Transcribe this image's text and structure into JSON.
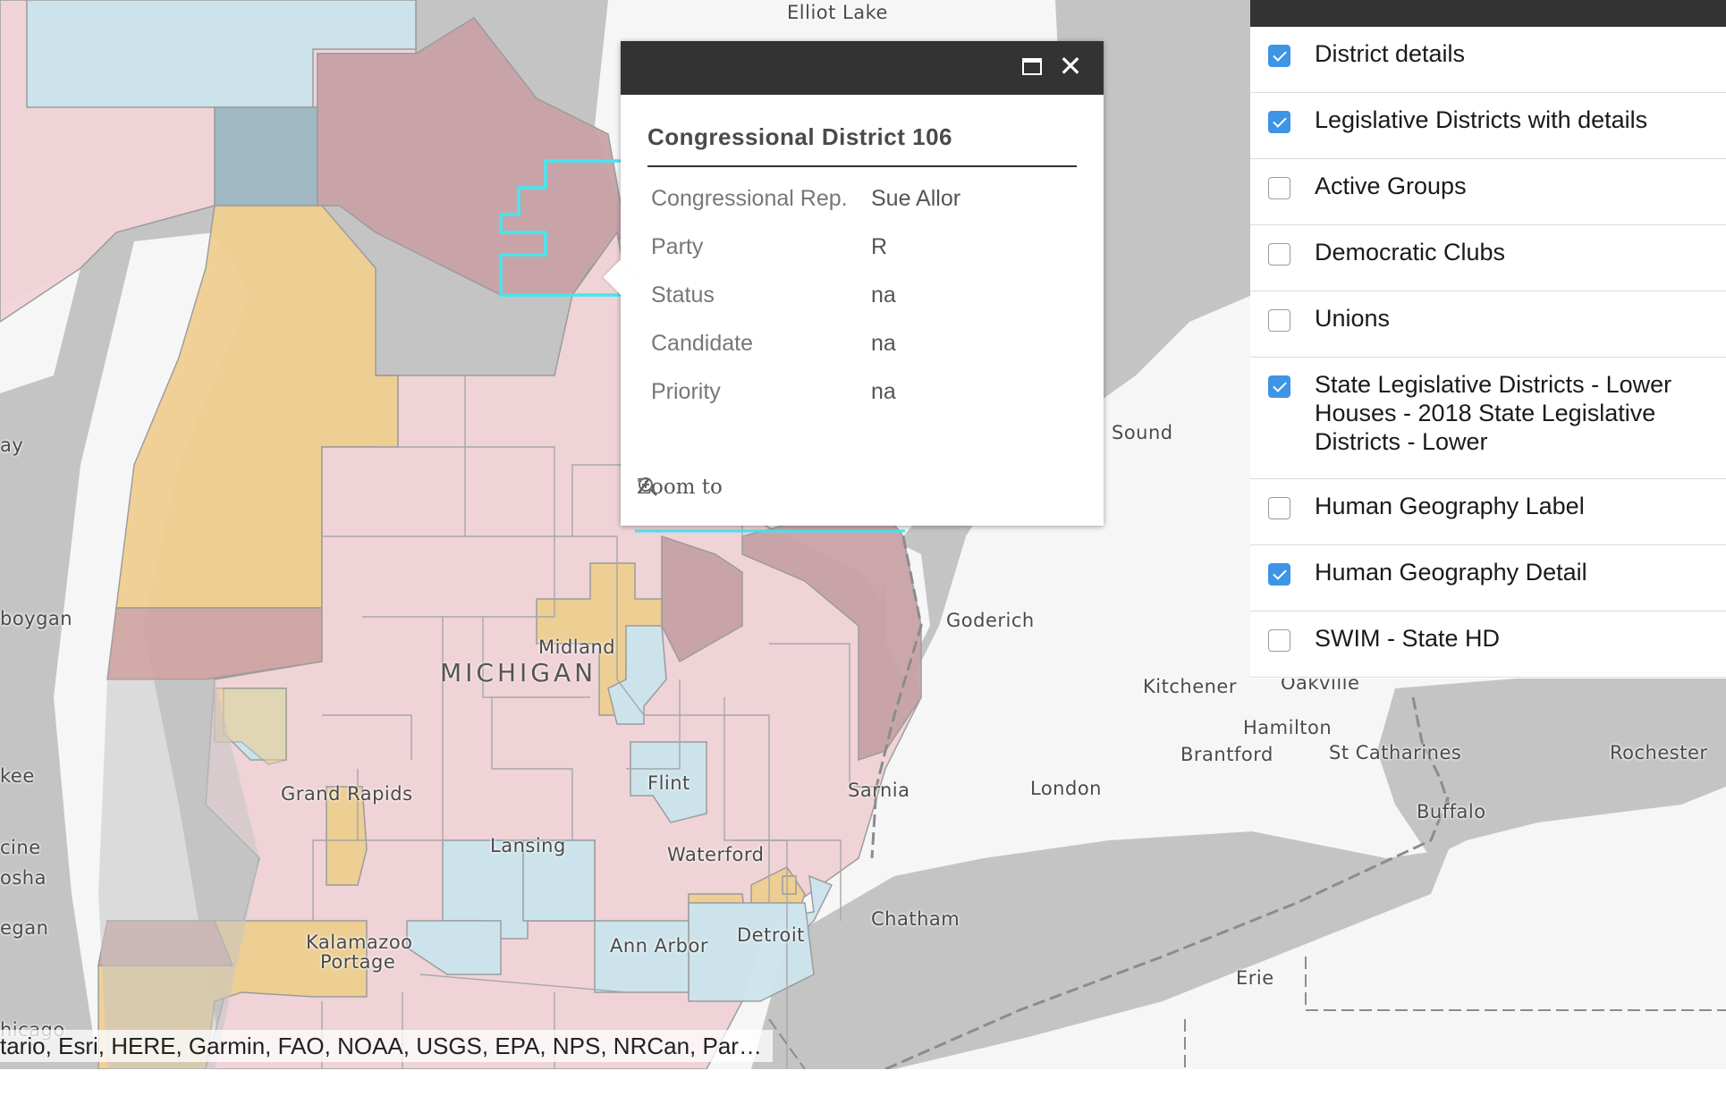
{
  "map": {
    "state_label": "MICHIGAN",
    "places": [
      "Elliot Lake",
      "Goderich",
      "Kitchener",
      "Oakville",
      "Hamilton",
      "Brantford",
      "St Catharines",
      "Rochester",
      "Buffalo",
      "London",
      "Sarnia",
      "Chatham",
      "Erie",
      "Midland",
      "Flint",
      "Lansing",
      "Waterford",
      "Grand Rapids",
      "Kalamazoo",
      "Portage",
      "Ann Arbor",
      "Detroit",
      "n Sound",
      "ay",
      "boygan",
      "kee",
      "cine",
      "osha",
      "egan",
      "hicago"
    ],
    "attribution": "tario, Esri, HERE, Garmin, FAO, NOAA, USGS, EPA, NPS, NRCan, Par…",
    "colors": {
      "water": "#f6f6f6",
      "land": "#c2c2c2",
      "republican": "#f2d4d9",
      "democrat": "#cde5ee",
      "highlight": "#45e6ef"
    }
  },
  "popup": {
    "title": "Congressional District 106",
    "fields": [
      {
        "label": "Congressional Rep.",
        "value": "Sue Allor"
      },
      {
        "label": "Party",
        "value": "R"
      },
      {
        "label": "Status",
        "value": "na"
      },
      {
        "label": "Candidate",
        "value": "na"
      },
      {
        "label": "Priority",
        "value": "na"
      }
    ],
    "zoom_label": "Zoom to",
    "maximize_icon": "maximize-icon",
    "close_icon": "close-icon",
    "close_glyph": "✕"
  },
  "layers": [
    {
      "label": "District details",
      "checked": true
    },
    {
      "label": "Legislative Districts with details",
      "checked": true
    },
    {
      "label": "Active Groups",
      "checked": false
    },
    {
      "label": "Democratic Clubs",
      "checked": false
    },
    {
      "label": "Unions",
      "checked": false
    },
    {
      "label": "State Legislative Districts - Lower Houses - 2018 State Legislative Districts - Lower",
      "checked": true
    },
    {
      "label": "Human Geography Label",
      "checked": false
    },
    {
      "label": "Human Geography Detail",
      "checked": true
    },
    {
      "label": "SWIM - State HD",
      "checked": false
    }
  ]
}
